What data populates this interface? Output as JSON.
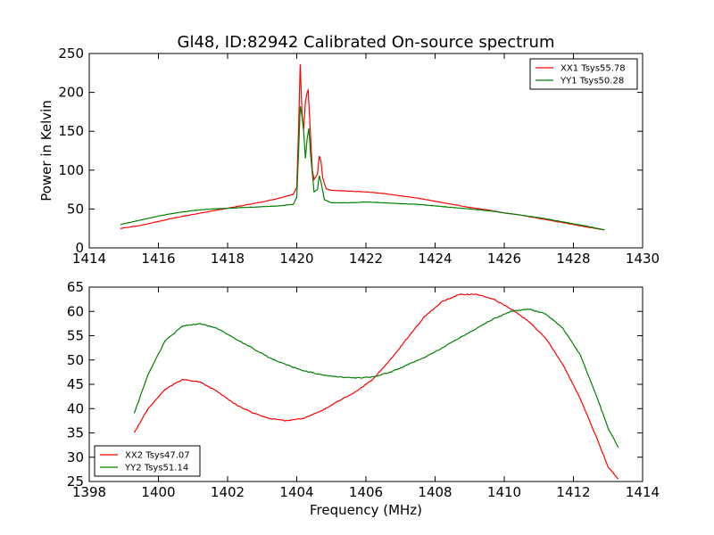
{
  "chart_data": [
    {
      "type": "line",
      "title": "Gl48, ID:82942 Calibrated On-source spectrum",
      "xlabel": "",
      "ylabel": "Power in Kelvin",
      "xlim": [
        1414,
        1430
      ],
      "ylim": [
        0,
        250
      ],
      "xticks": [
        1414,
        1416,
        1418,
        1420,
        1422,
        1424,
        1426,
        1428,
        1430
      ],
      "yticks": [
        0,
        50,
        100,
        150,
        200,
        250
      ],
      "legend_position": "top-right",
      "series": [
        {
          "name": "XX1 Tsys55.78",
          "color": "#ff0000",
          "points": [
            [
              1414.9,
              25
            ],
            [
              1415.5,
              29
            ],
            [
              1416,
              34
            ],
            [
              1416.5,
              39
            ],
            [
              1417,
              43
            ],
            [
              1417.5,
              47
            ],
            [
              1418,
              51
            ],
            [
              1418.5,
              55
            ],
            [
              1419,
              59
            ],
            [
              1419.5,
              64
            ],
            [
              1419.9,
              69
            ],
            [
              1420.0,
              78
            ],
            [
              1420.05,
              150
            ],
            [
              1420.1,
              236
            ],
            [
              1420.15,
              175
            ],
            [
              1420.2,
              152
            ],
            [
              1420.25,
              188
            ],
            [
              1420.3,
              200
            ],
            [
              1420.33,
              203
            ],
            [
              1420.38,
              160
            ],
            [
              1420.45,
              100
            ],
            [
              1420.5,
              88
            ],
            [
              1420.6,
              95
            ],
            [
              1420.65,
              118
            ],
            [
              1420.7,
              112
            ],
            [
              1420.75,
              90
            ],
            [
              1420.85,
              76
            ],
            [
              1421,
              74
            ],
            [
              1421.5,
              73
            ],
            [
              1422,
              72
            ],
            [
              1422.5,
              70
            ],
            [
              1423,
              67
            ],
            [
              1423.5,
              64
            ],
            [
              1424,
              60
            ],
            [
              1424.5,
              56
            ],
            [
              1425,
              52
            ],
            [
              1425.5,
              49
            ],
            [
              1426,
              45
            ],
            [
              1426.5,
              42
            ],
            [
              1427,
              38
            ],
            [
              1427.5,
              34
            ],
            [
              1428,
              30
            ],
            [
              1428.5,
              26
            ],
            [
              1428.9,
              23
            ]
          ]
        },
        {
          "name": "YY1 Tsys50.28",
          "color": "#008000",
          "points": [
            [
              1414.9,
              30
            ],
            [
              1415.5,
              36
            ],
            [
              1416,
              41
            ],
            [
              1416.5,
              45
            ],
            [
              1417,
              48
            ],
            [
              1417.5,
              50
            ],
            [
              1418,
              51
            ],
            [
              1418.5,
              52
            ],
            [
              1419,
              53
            ],
            [
              1419.5,
              54
            ],
            [
              1419.9,
              56
            ],
            [
              1420.0,
              65
            ],
            [
              1420.05,
              120
            ],
            [
              1420.1,
              182
            ],
            [
              1420.15,
              170
            ],
            [
              1420.2,
              150
            ],
            [
              1420.25,
              115
            ],
            [
              1420.3,
              140
            ],
            [
              1420.35,
              154
            ],
            [
              1420.4,
              120
            ],
            [
              1420.5,
              72
            ],
            [
              1420.6,
              75
            ],
            [
              1420.65,
              93
            ],
            [
              1420.7,
              85
            ],
            [
              1420.8,
              62
            ],
            [
              1421,
              58
            ],
            [
              1421.5,
              58
            ],
            [
              1422,
              59
            ],
            [
              1422.5,
              58
            ],
            [
              1423,
              57
            ],
            [
              1423.5,
              56
            ],
            [
              1424,
              54
            ],
            [
              1424.5,
              52
            ],
            [
              1425,
              50
            ],
            [
              1425.5,
              48
            ],
            [
              1426,
              45
            ],
            [
              1426.5,
              42
            ],
            [
              1427,
              39
            ],
            [
              1427.5,
              35
            ],
            [
              1428,
              31
            ],
            [
              1428.5,
              27
            ],
            [
              1428.9,
              23
            ]
          ]
        }
      ]
    },
    {
      "type": "line",
      "title": "",
      "xlabel": "Frequency (MHz)",
      "ylabel": "",
      "xlim": [
        1398,
        1414
      ],
      "ylim": [
        25,
        65
      ],
      "xticks": [
        1398,
        1400,
        1402,
        1404,
        1406,
        1408,
        1410,
        1412,
        1414
      ],
      "yticks": [
        25,
        30,
        35,
        40,
        45,
        50,
        55,
        60,
        65
      ],
      "legend_position": "bottom-left",
      "series": [
        {
          "name": "XX2 Tsys47.07",
          "color": "#ff0000",
          "points": [
            [
              1399.3,
              35
            ],
            [
              1399.7,
              40
            ],
            [
              1400.2,
              44
            ],
            [
              1400.7,
              46
            ],
            [
              1401.2,
              45.5
            ],
            [
              1401.7,
              43.5
            ],
            [
              1402.2,
              41
            ],
            [
              1402.7,
              39.2
            ],
            [
              1403.2,
              38
            ],
            [
              1403.7,
              37.5
            ],
            [
              1404.2,
              38
            ],
            [
              1404.7,
              39.5
            ],
            [
              1405.2,
              41.5
            ],
            [
              1405.7,
              43.5
            ],
            [
              1406.2,
              46
            ],
            [
              1406.7,
              50
            ],
            [
              1407.2,
              54.5
            ],
            [
              1407.7,
              59
            ],
            [
              1408.2,
              62
            ],
            [
              1408.7,
              63.5
            ],
            [
              1409.2,
              63.5
            ],
            [
              1409.7,
              62.5
            ],
            [
              1410.2,
              60.5
            ],
            [
              1410.7,
              58
            ],
            [
              1411.2,
              54.5
            ],
            [
              1411.7,
              49
            ],
            [
              1412.2,
              42
            ],
            [
              1412.7,
              33.5
            ],
            [
              1413.0,
              28
            ],
            [
              1413.3,
              25.5
            ]
          ]
        },
        {
          "name": "YY2 Tsys51.14",
          "color": "#008000",
          "points": [
            [
              1399.3,
              39
            ],
            [
              1399.7,
              47
            ],
            [
              1400.2,
              54
            ],
            [
              1400.7,
              57
            ],
            [
              1401.2,
              57.5
            ],
            [
              1401.7,
              56.5
            ],
            [
              1402.2,
              54.5
            ],
            [
              1402.7,
              52.5
            ],
            [
              1403.2,
              50.5
            ],
            [
              1403.7,
              49
            ],
            [
              1404.2,
              47.8
            ],
            [
              1404.7,
              47
            ],
            [
              1405.2,
              46.5
            ],
            [
              1405.7,
              46.3
            ],
            [
              1406.2,
              46.5
            ],
            [
              1406.7,
              47.5
            ],
            [
              1407.2,
              49
            ],
            [
              1407.7,
              50.5
            ],
            [
              1408.2,
              52.5
            ],
            [
              1408.7,
              54.5
            ],
            [
              1409.2,
              56.5
            ],
            [
              1409.7,
              58.5
            ],
            [
              1410.2,
              60
            ],
            [
              1410.7,
              60.5
            ],
            [
              1411.2,
              59.5
            ],
            [
              1411.7,
              56.5
            ],
            [
              1412.2,
              51
            ],
            [
              1412.7,
              42
            ],
            [
              1413.0,
              36
            ],
            [
              1413.3,
              32
            ]
          ]
        }
      ]
    }
  ]
}
